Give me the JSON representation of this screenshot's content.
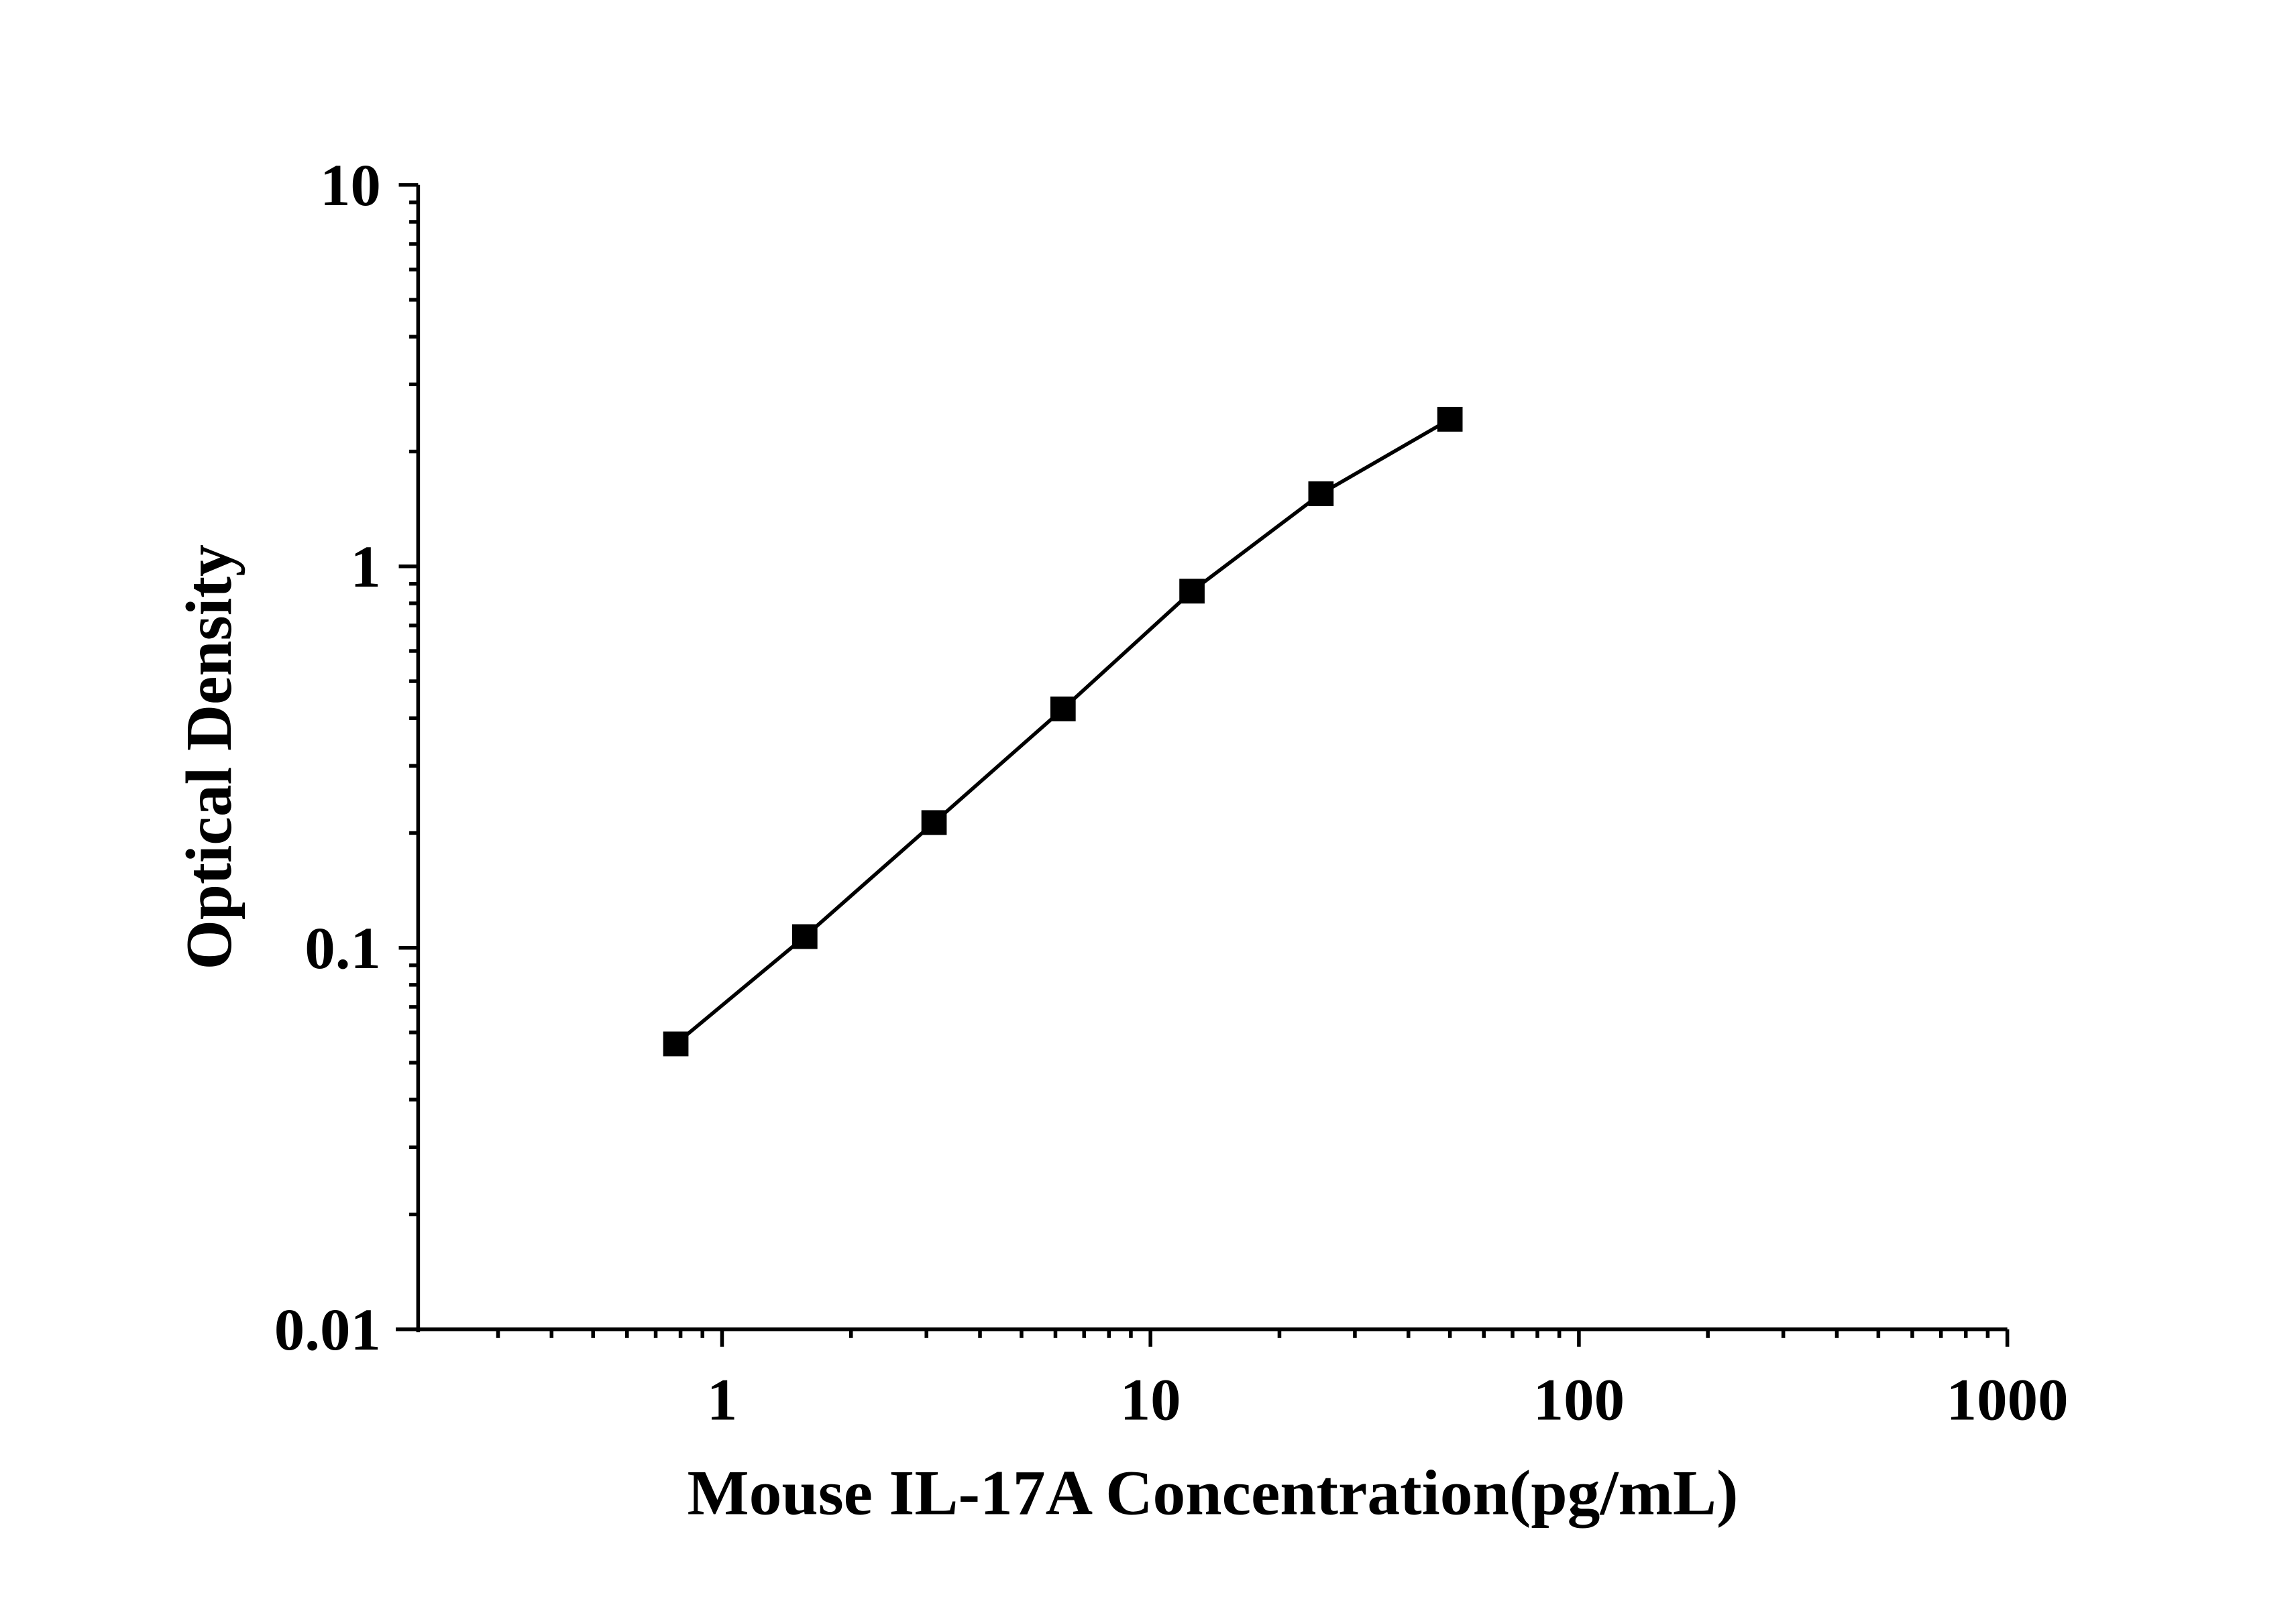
{
  "chart_data": {
    "type": "line",
    "x_label": "Mouse IL-17A Concentration(pg/mL)",
    "y_label": "Optical Density",
    "x": [
      0.78,
      1.56,
      3.125,
      6.25,
      12.5,
      25,
      50
    ],
    "series": [
      {
        "color": "#000000",
        "values": [
          0.056,
          0.107,
          0.213,
          0.423,
          0.861,
          1.55,
          2.43
        ]
      }
    ],
    "xlim": [
      0.2,
      1000
    ],
    "ylim": [
      0.01,
      10
    ],
    "xticks": [
      1,
      10,
      100,
      1000
    ],
    "yticks": [
      0.01,
      0.1,
      1,
      10
    ],
    "xscale": "log",
    "yscale": "log",
    "grid": false,
    "markers": "square"
  }
}
